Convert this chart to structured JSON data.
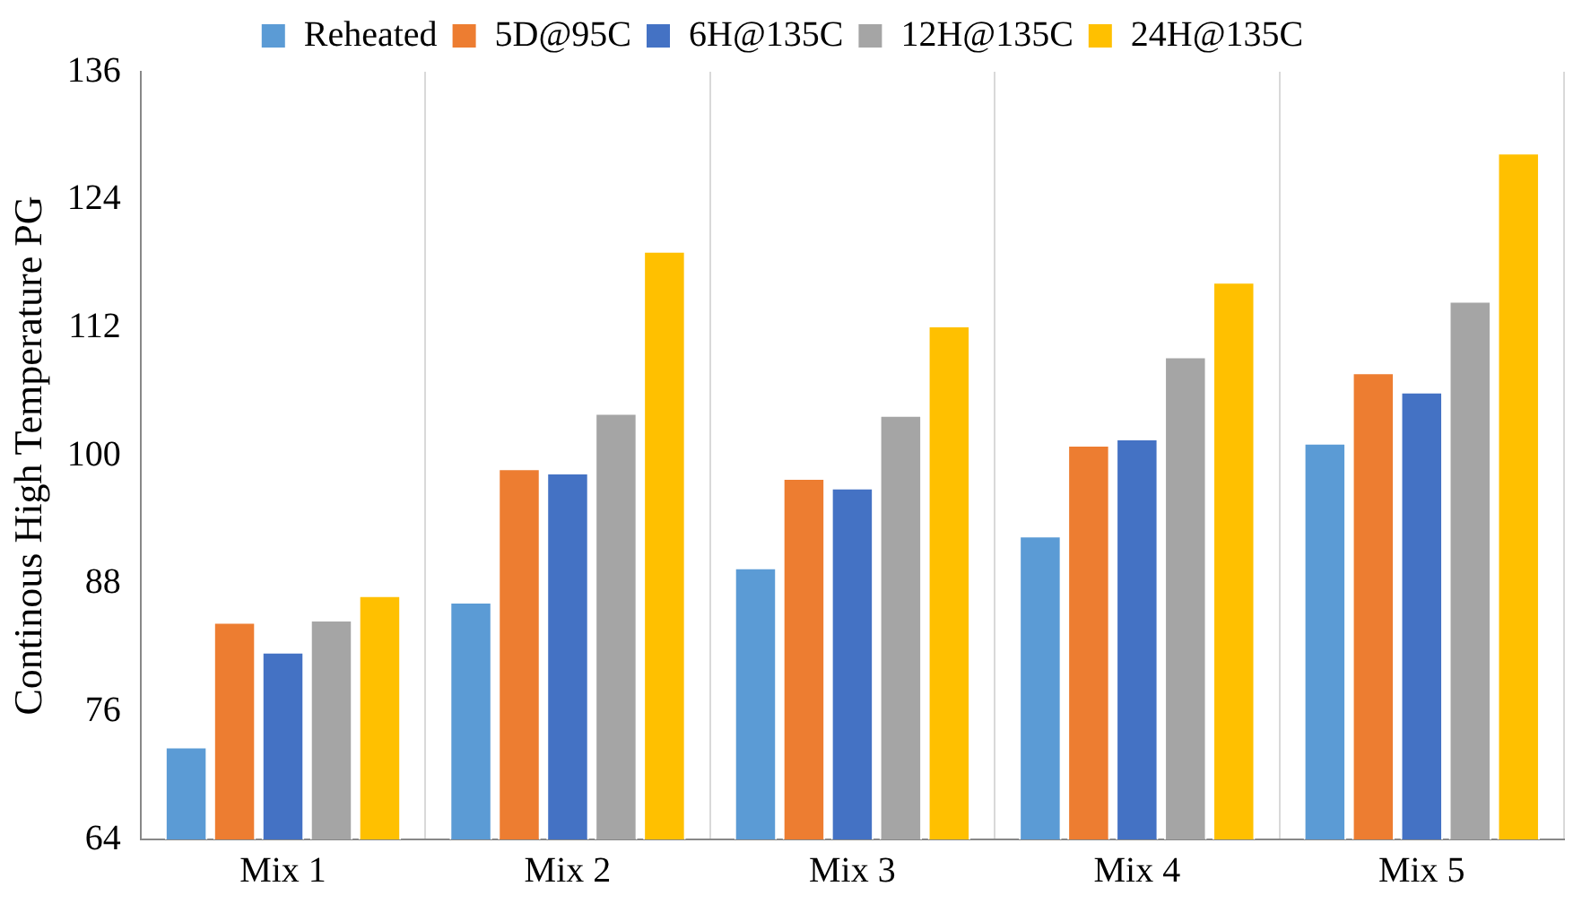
{
  "chart_data": {
    "type": "bar",
    "ylabel": "Continous High Temperature PG",
    "categories": [
      "Mix 1",
      "Mix 2",
      "Mix 3",
      "Mix 4",
      "Mix 5"
    ],
    "series": [
      {
        "name": "Reheated",
        "color": "#5b9bd5",
        "values": [
          72.7,
          86.3,
          89.5,
          92.5,
          101.2
        ]
      },
      {
        "name": "5D@95C",
        "color": "#ed7d31",
        "values": [
          84.4,
          98.8,
          97.9,
          101.0,
          107.8
        ]
      },
      {
        "name": "6H@135C",
        "color": "#4472c4",
        "values": [
          81.6,
          98.4,
          97.0,
          101.6,
          106.0
        ]
      },
      {
        "name": "12H@135C",
        "color": "#a5a5a5",
        "values": [
          84.6,
          104.0,
          103.8,
          109.3,
          114.5
        ]
      },
      {
        "name": "24H@135C",
        "color": "#ffc000",
        "values": [
          86.9,
          119.2,
          112.2,
          116.3,
          128.4
        ]
      }
    ],
    "ylim": [
      64,
      136
    ],
    "yticks": [
      64,
      76,
      88,
      100,
      112,
      124,
      136
    ],
    "grid": "x",
    "legend": "top"
  }
}
